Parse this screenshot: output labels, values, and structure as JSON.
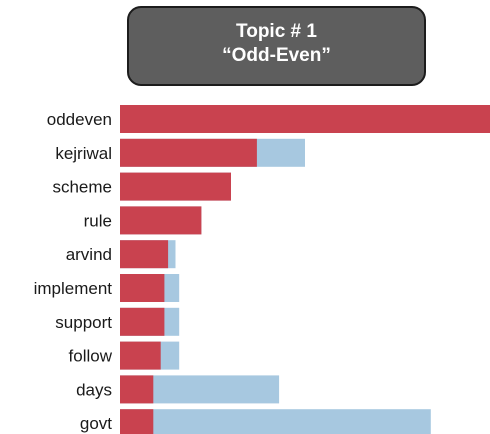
{
  "title": {
    "line1": "Topic # 1",
    "line2": "“Odd-Even”"
  },
  "colors": {
    "primary": "#c9424f",
    "secondary": "#a7c8e0",
    "title_box": "#5e5e5e"
  },
  "chart_data": {
    "type": "bar",
    "orientation": "horizontal",
    "stacked": false,
    "overlay": true,
    "categories": [
      "oddeven",
      "kejriwal",
      "scheme",
      "rule",
      "arvind",
      "implement",
      "support",
      "follow",
      "days",
      "govt"
    ],
    "series": [
      {
        "values": [
          100,
          37,
          30,
          22,
          13,
          12,
          12,
          11,
          9,
          9
        ],
        "color": "#c9424f"
      },
      {
        "values": [
          100,
          50,
          30,
          22,
          15,
          16,
          16,
          16,
          43,
          84
        ],
        "color": "#a7c8e0"
      }
    ],
    "xlim": [
      0,
      100
    ],
    "grid": false,
    "legend": false
  }
}
